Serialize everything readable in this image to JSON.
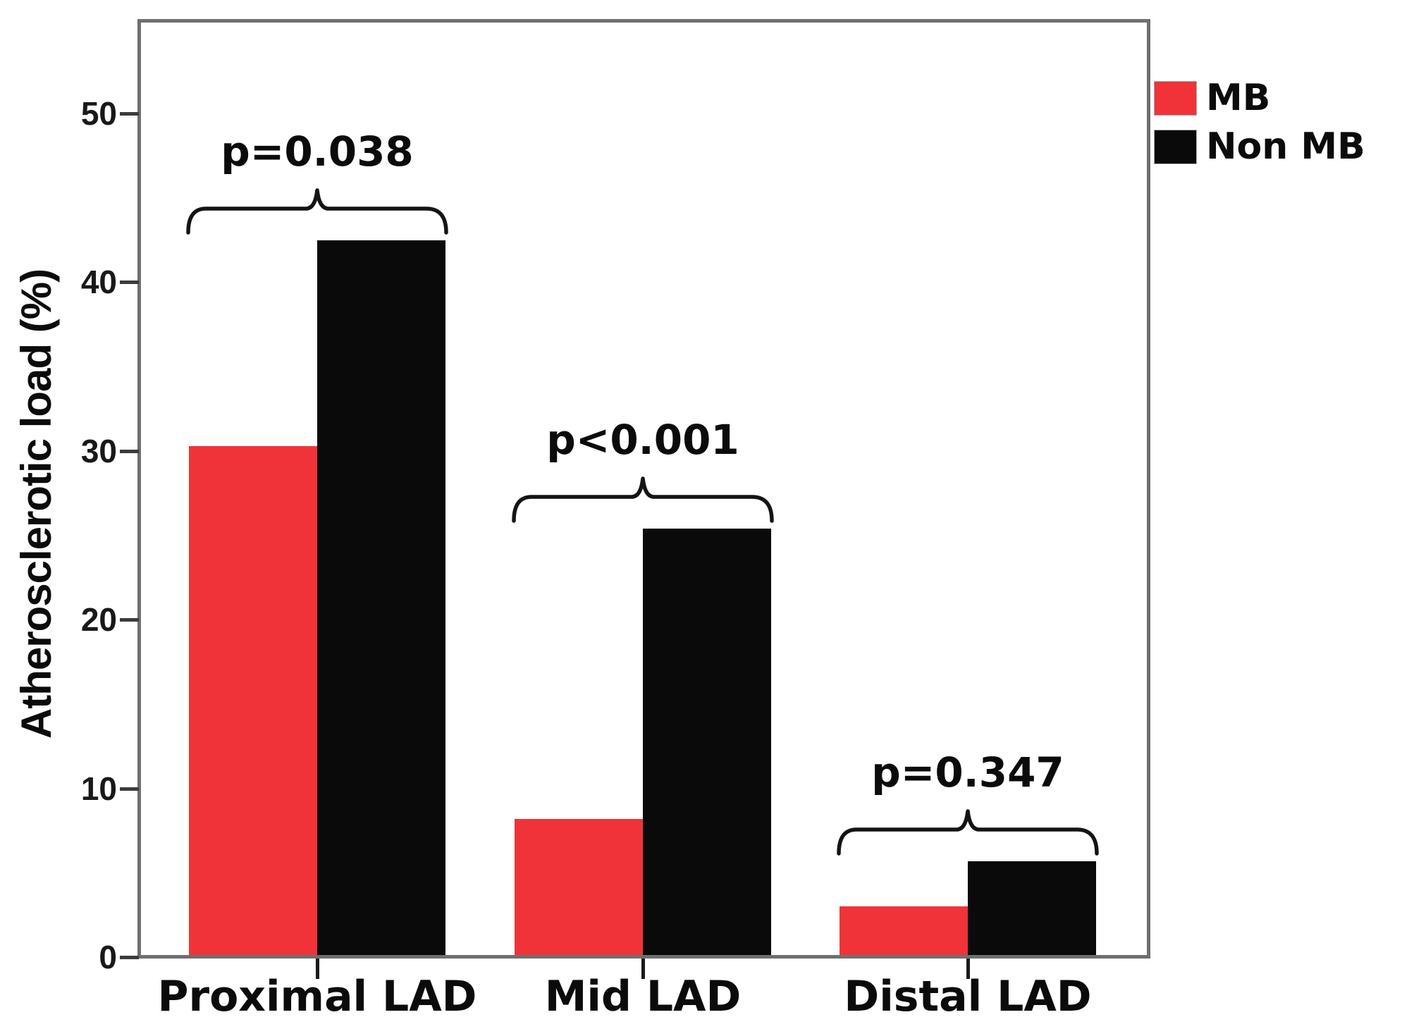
{
  "figure": {
    "background": "#ffffff",
    "y_axis_title": "Atherosclerotic load (%)"
  },
  "chart_data": {
    "type": "bar",
    "title": "",
    "xlabel": "",
    "ylabel": "Atherosclerotic load (%)",
    "categories": [
      "Proximal LAD",
      "Mid LAD",
      "Distal LAD"
    ],
    "series": [
      {
        "name": "MB",
        "color": "#EF3338",
        "values": [
          30.3,
          8.2,
          3.0
        ]
      },
      {
        "name": "Non MB",
        "color": "#0A0A0A",
        "values": [
          42.5,
          25.4,
          5.7
        ]
      }
    ],
    "annotations": [
      {
        "category": "Proximal LAD",
        "label": "p=0.038"
      },
      {
        "category": "Mid LAD",
        "label": "p<0.001"
      },
      {
        "category": "Distal LAD",
        "label": "p=0.347"
      }
    ],
    "legend": [
      {
        "label": "MB",
        "color": "#EF3338"
      },
      {
        "label": "Non MB",
        "color": "#0A0A0A"
      }
    ],
    "legend_position": "top-right-outside",
    "ylim": [
      0,
      55.7
    ],
    "yticks": [
      0,
      10,
      20,
      30,
      40,
      50
    ],
    "grid": false,
    "bar_cluster_gap": 0,
    "frame_color": "#6F6F6F",
    "annotation_color": "#141414"
  }
}
